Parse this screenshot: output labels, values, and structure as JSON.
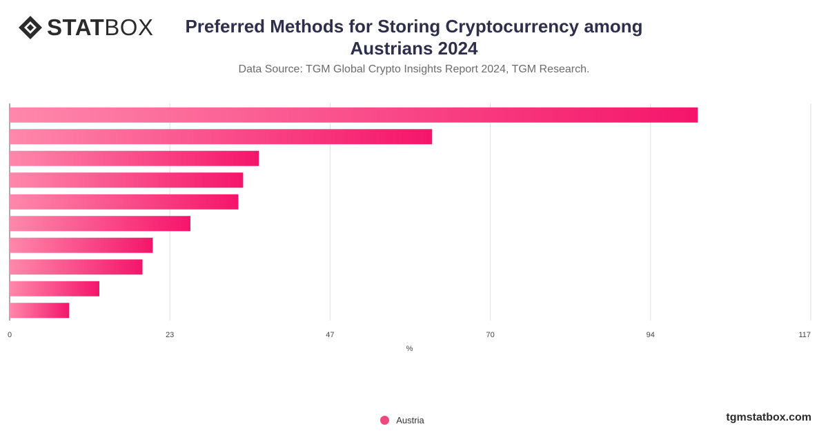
{
  "brand": {
    "logo_bold": "STAT",
    "logo_light": "BOX",
    "website": "tgmstatbox.com"
  },
  "title": "Preferred Methods for Storing Cryptocurrency among Austrians 2024",
  "subtitle": "Data Source: TGM Global Crypto Insights Report 2024, TGM Research.",
  "colors": {
    "bar_start": "#fe88ab",
    "bar_end": "#f5156a",
    "grid": "#dedede",
    "text": "#2e2f4a"
  },
  "chart_data": {
    "type": "bar",
    "orientation": "horizontal",
    "categories": [
      "",
      "",
      "",
      "",
      "",
      "",
      "",
      "",
      "",
      ""
    ],
    "series": [
      {
        "name": "Austria",
        "values": [
          100.5,
          61.7,
          36.4,
          34.1,
          33.4,
          26.4,
          20.9,
          19.4,
          13.1,
          8.7
        ]
      }
    ],
    "xlabel": "%",
    "xlim": [
      0,
      117
    ],
    "xticks": [
      "0",
      "23",
      "47",
      "70",
      "94",
      "117"
    ],
    "grid": true,
    "legend_position": "bottom-center"
  }
}
